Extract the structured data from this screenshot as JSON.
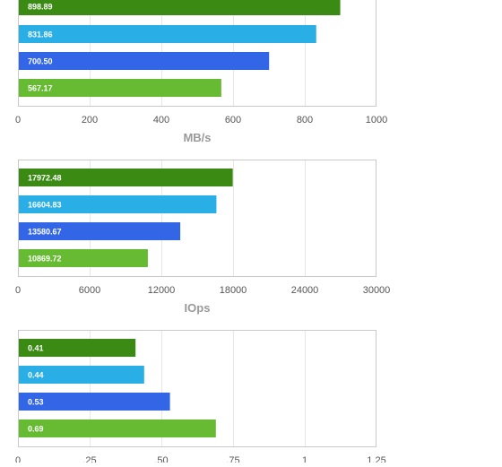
{
  "colors": {
    "series": [
      "#3a8a14",
      "#29aee6",
      "#3366e6",
      "#66bb33"
    ],
    "frame": "#c9c9c9",
    "grid": "#e6e6e6",
    "tick_text": "#555555",
    "axis_title": "#999999"
  },
  "chart_data": [
    {
      "type": "bar",
      "orientation": "horizontal",
      "values": [
        898.89,
        831.86,
        700.5,
        567.17
      ],
      "value_labels": [
        "898.89",
        "831.86",
        "700.50",
        "567.17"
      ],
      "xlabel": "MB/s",
      "xlim": [
        0,
        1000
      ],
      "ticks": [
        "0",
        "200",
        "400",
        "600",
        "800",
        "1000"
      ],
      "grid": true
    },
    {
      "type": "bar",
      "orientation": "horizontal",
      "values": [
        17972.48,
        16604.83,
        13580.67,
        10869.72
      ],
      "value_labels": [
        "17972.48",
        "16604.83",
        "13580.67",
        "10869.72"
      ],
      "xlabel": "IOps",
      "xlim": [
        0,
        30000
      ],
      "ticks": [
        "0",
        "6000",
        "12000",
        "18000",
        "24000",
        "30000"
      ],
      "grid": true
    },
    {
      "type": "bar",
      "orientation": "horizontal",
      "values": [
        0.41,
        0.44,
        0.53,
        0.69
      ],
      "value_labels": [
        "0.41",
        "0.44",
        "0.53",
        "0.69"
      ],
      "xlabel": "",
      "xlim": [
        0,
        1.25
      ],
      "ticks": [
        "0",
        ".25",
        ".50",
        ".75",
        "1",
        "1.25"
      ],
      "grid": true
    }
  ]
}
